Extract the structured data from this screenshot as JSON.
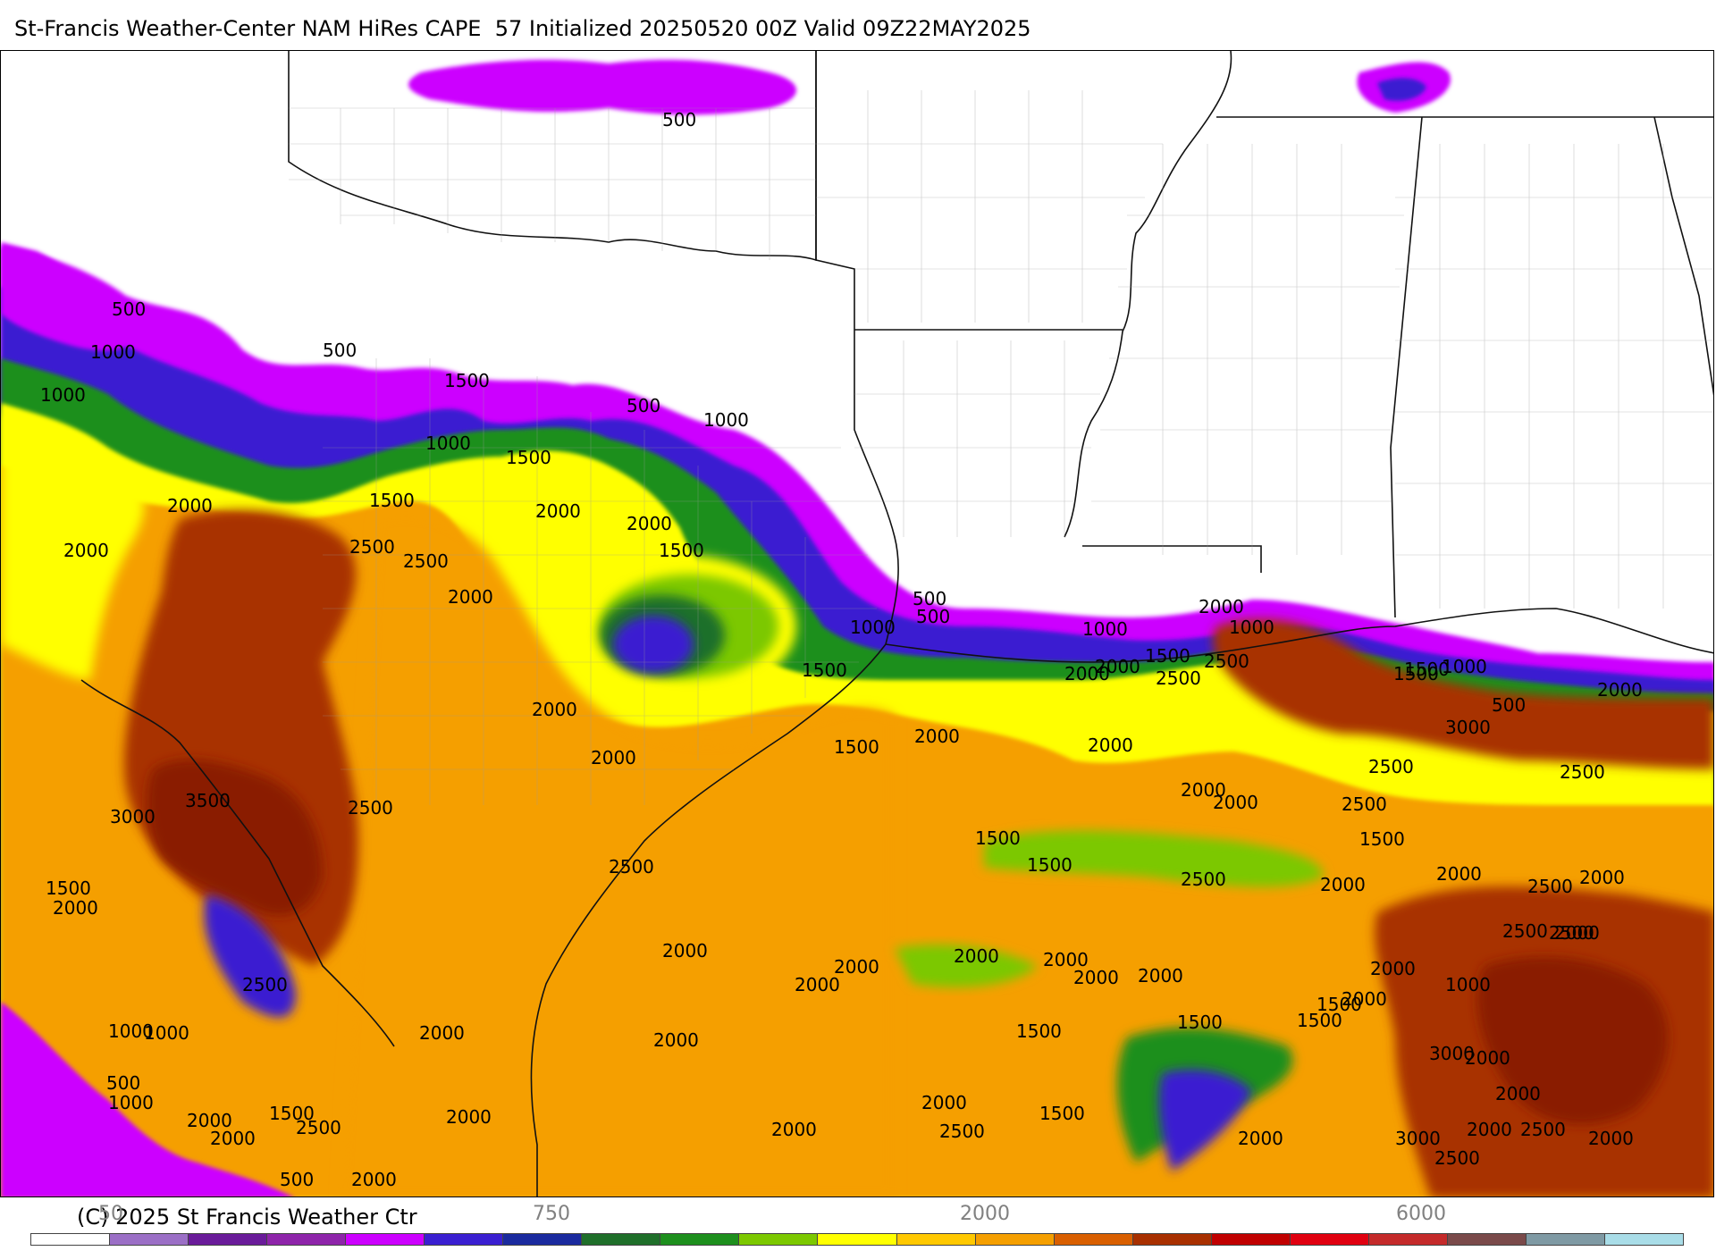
{
  "title": "St-Francis Weather-Center NAM HiRes CAPE  57 Initialized 20250520 00Z Valid 09Z22MAY2025",
  "copyright": "(C) 2025 St Francis Weather Ctr",
  "colorbar": {
    "tick_labels": [
      "50",
      "750",
      "2000",
      "6000"
    ],
    "colors": [
      "#ffffff",
      "#9b6fc6",
      "#6a1b9a",
      "#8e24aa",
      "#cc00ff",
      "#3a1fd1",
      "#1a2a9e",
      "#1f6f2a",
      "#1d8f1d",
      "#7cc800",
      "#ffff00",
      "#ffc800",
      "#f59f00",
      "#d95f00",
      "#a83000",
      "#c00000",
      "#e00010",
      "#c42a2a",
      "#7a4a4a",
      "#7f9aa4",
      "#a9dde8"
    ]
  },
  "map": {
    "cape_color_levels": {
      "500": "#cc00ff",
      "1000": "#3a1fd1",
      "1500": "#7cc800",
      "2000": "#ffff00",
      "2500": "#f59f00",
      "3000": "#a83000",
      "3500": "#8a1f00"
    },
    "contour_labels": [
      "500",
      "500",
      "500",
      "1000",
      "1000",
      "1500",
      "500",
      "1000",
      "500",
      "1000",
      "2000",
      "1500",
      "1500",
      "2000",
      "2000",
      "2000",
      "2500",
      "2500",
      "2000",
      "1500",
      "1000",
      "500",
      "1000",
      "1500",
      "1000",
      "2000",
      "1500",
      "2000",
      "2000",
      "2000",
      "1500",
      "1000",
      "500",
      "2000",
      "2500",
      "1500",
      "2500",
      "3000",
      "2000",
      "2500",
      "1500",
      "2500",
      "3500",
      "3000",
      "1500",
      "2500",
      "2000",
      "2000",
      "2500",
      "1500",
      "2000",
      "2500",
      "2000",
      "2000",
      "2500",
      "2000",
      "1500",
      "2000",
      "2000",
      "1500",
      "2500",
      "2000",
      "2500",
      "1000",
      "2500",
      "2000",
      "2000",
      "2000",
      "2000",
      "2000",
      "2000",
      "2000",
      "2000",
      "1500",
      "3000",
      "1000",
      "2000",
      "1000",
      "1500",
      "2000",
      "1500",
      "2000",
      "1500",
      "2500",
      "500",
      "2000",
      "2000",
      "2000",
      "1500",
      "2500",
      "2000",
      "2000",
      "1000",
      "500",
      "2000",
      "2000",
      "2000",
      "1500",
      "2000",
      "2000",
      "2500",
      "3000",
      "2000",
      "2500",
      "2500"
    ]
  }
}
